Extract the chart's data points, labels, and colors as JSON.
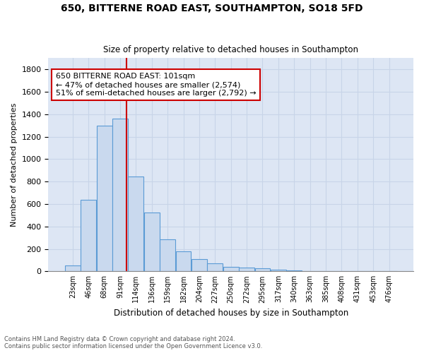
{
  "title1": "650, BITTERNE ROAD EAST, SOUTHAMPTON, SO18 5FD",
  "title2": "Size of property relative to detached houses in Southampton",
  "xlabel": "Distribution of detached houses by size in Southampton",
  "ylabel": "Number of detached properties",
  "categories": [
    "23sqm",
    "46sqm",
    "68sqm",
    "91sqm",
    "114sqm",
    "136sqm",
    "159sqm",
    "182sqm",
    "204sqm",
    "227sqm",
    "250sqm",
    "272sqm",
    "295sqm",
    "317sqm",
    "340sqm",
    "363sqm",
    "385sqm",
    "408sqm",
    "431sqm",
    "453sqm",
    "476sqm"
  ],
  "bar_heights": [
    55,
    640,
    1300,
    1360,
    845,
    525,
    285,
    175,
    110,
    70,
    40,
    35,
    25,
    15,
    10,
    5,
    0,
    0,
    0,
    0,
    0
  ],
  "bar_color": "#c9d9ee",
  "bar_edge_color": "#5b9bd5",
  "vline_x_index": 3.65,
  "vline_color": "#cc0000",
  "annotation_line1": "650 BITTERNE ROAD EAST: 101sqm",
  "annotation_line2": "← 47% of detached houses are smaller (2,574)",
  "annotation_line3": "51% of semi-detached houses are larger (2,792) →",
  "annotation_box_color": "#ffffff",
  "annotation_box_edge": "#cc0000",
  "ylim": [
    0,
    1900
  ],
  "yticks": [
    0,
    200,
    400,
    600,
    800,
    1000,
    1200,
    1400,
    1600,
    1800
  ],
  "grid_color": "#c8d4e8",
  "background_color": "#dde6f4",
  "footer_text1": "Contains HM Land Registry data © Crown copyright and database right 2024.",
  "footer_text2": "Contains public sector information licensed under the Open Government Licence v3.0.",
  "bin_width": 23
}
